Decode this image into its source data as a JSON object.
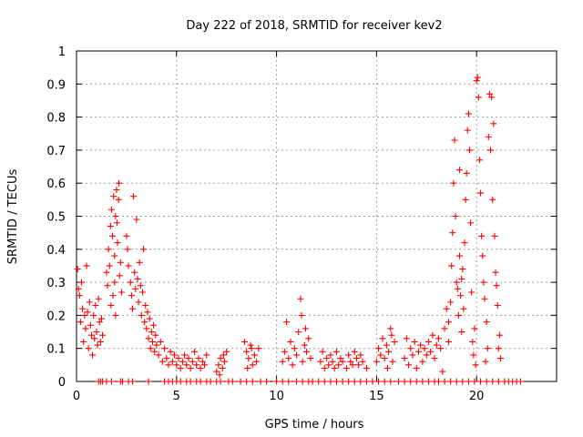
{
  "chart_data": {
    "type": "scatter",
    "title": "Day 222 of 2018, SRMTID for receiver kev2",
    "xlabel": "GPS time / hours",
    "ylabel": "SRMTID / TECUs",
    "xlim": [
      0,
      24
    ],
    "ylim": [
      0,
      1
    ],
    "xticks": [
      0,
      5,
      10,
      15,
      20
    ],
    "xtick_labels": [
      "0",
      "5",
      "10",
      "15",
      "20"
    ],
    "yticks": [
      0,
      0.1,
      0.2,
      0.3,
      0.4,
      0.5,
      0.6,
      0.7,
      0.8,
      0.9,
      1
    ],
    "ytick_labels": [
      "0",
      "0.1",
      "0.2",
      "0.3",
      "0.4",
      "0.5",
      "0.6",
      "0.7",
      "0.8",
      "0.9",
      "1"
    ],
    "grid": true,
    "marker": "+",
    "color": "#ff0000",
    "series": [
      {
        "name": "SRMTID",
        "points": [
          [
            0.05,
            0.34
          ],
          [
            0.1,
            0.28
          ],
          [
            0.15,
            0.26
          ],
          [
            0.2,
            0.18
          ],
          [
            0.25,
            0.3
          ],
          [
            0.3,
            0.22
          ],
          [
            0.35,
            0.12
          ],
          [
            0.4,
            0.2
          ],
          [
            0.45,
            0.16
          ],
          [
            0.5,
            0.35
          ],
          [
            0.55,
            0.21
          ],
          [
            0.6,
            0.1
          ],
          [
            0.65,
            0.24
          ],
          [
            0.7,
            0.17
          ],
          [
            0.75,
            0.14
          ],
          [
            0.8,
            0.08
          ],
          [
            0.85,
            0.2
          ],
          [
            0.9,
            0.13
          ],
          [
            0.95,
            0.23
          ],
          [
            1.0,
            0.15
          ],
          [
            1.05,
            0.11
          ],
          [
            1.1,
            0.25
          ],
          [
            1.15,
            0.18
          ],
          [
            1.2,
            0.12
          ],
          [
            1.25,
            0.19
          ],
          [
            1.3,
            0.14
          ],
          [
            1.5,
            0.33
          ],
          [
            1.55,
            0.29
          ],
          [
            1.6,
            0.4
          ],
          [
            1.65,
            0.35
          ],
          [
            1.7,
            0.47
          ],
          [
            1.75,
            0.52
          ],
          [
            1.8,
            0.44
          ],
          [
            1.85,
            0.56
          ],
          [
            1.9,
            0.38
          ],
          [
            1.95,
            0.5
          ],
          [
            2.0,
            0.58
          ],
          [
            2.05,
            0.42
          ],
          [
            2.1,
            0.55
          ],
          [
            2.15,
            0.32
          ],
          [
            2.2,
            0.36
          ],
          [
            2.25,
            0.27
          ],
          [
            1.72,
            0.23
          ],
          [
            1.9,
            0.3
          ],
          [
            2.02,
            0.48
          ],
          [
            2.12,
            0.6
          ],
          [
            1.82,
            0.26
          ],
          [
            1.95,
            0.2
          ],
          [
            2.5,
            0.44
          ],
          [
            2.55,
            0.4
          ],
          [
            2.6,
            0.35
          ],
          [
            2.7,
            0.3
          ],
          [
            2.75,
            0.26
          ],
          [
            2.8,
            0.22
          ],
          [
            2.85,
            0.56
          ],
          [
            2.9,
            0.33
          ],
          [
            2.95,
            0.28
          ],
          [
            3.0,
            0.49
          ],
          [
            3.05,
            0.31
          ],
          [
            3.1,
            0.24
          ],
          [
            3.15,
            0.36
          ],
          [
            3.2,
            0.29
          ],
          [
            3.25,
            0.2
          ],
          [
            3.3,
            0.27
          ],
          [
            3.35,
            0.4
          ],
          [
            3.4,
            0.18
          ],
          [
            3.45,
            0.23
          ],
          [
            3.5,
            0.16
          ],
          [
            3.55,
            0.21
          ],
          [
            3.6,
            0.13
          ],
          [
            3.65,
            0.19
          ],
          [
            3.7,
            0.1
          ],
          [
            3.75,
            0.15
          ],
          [
            3.8,
            0.12
          ],
          [
            3.85,
            0.17
          ],
          [
            3.9,
            0.09
          ],
          [
            3.95,
            0.14
          ],
          [
            4.0,
            0.11
          ],
          [
            4.1,
            0.08
          ],
          [
            4.2,
            0.12
          ],
          [
            4.3,
            0.06
          ],
          [
            4.4,
            0.1
          ],
          [
            4.5,
            0.07
          ],
          [
            4.6,
            0.05
          ],
          [
            4.7,
            0.09
          ],
          [
            4.8,
            0.06
          ],
          [
            4.9,
            0.08
          ],
          [
            5.0,
            0.05
          ],
          [
            5.1,
            0.07
          ],
          [
            5.2,
            0.04
          ],
          [
            5.3,
            0.06
          ],
          [
            5.4,
            0.08
          ],
          [
            5.5,
            0.05
          ],
          [
            5.6,
            0.07
          ],
          [
            5.7,
            0.04
          ],
          [
            5.8,
            0.06
          ],
          [
            5.9,
            0.09
          ],
          [
            6.0,
            0.05
          ],
          [
            6.1,
            0.07
          ],
          [
            6.2,
            0.04
          ],
          [
            6.3,
            0.06
          ],
          [
            6.4,
            0.05
          ],
          [
            6.5,
            0.08
          ],
          [
            7.0,
            0.03
          ],
          [
            7.1,
            0.05
          ],
          [
            7.2,
            0.07
          ],
          [
            7.3,
            0.04
          ],
          [
            7.4,
            0.06
          ],
          [
            7.5,
            0.09
          ],
          [
            7.15,
            0.02
          ],
          [
            7.35,
            0.08
          ],
          [
            8.4,
            0.12
          ],
          [
            8.5,
            0.09
          ],
          [
            8.6,
            0.07
          ],
          [
            8.7,
            0.11
          ],
          [
            8.8,
            0.05
          ],
          [
            8.9,
            0.08
          ],
          [
            9.0,
            0.06
          ],
          [
            9.1,
            0.1
          ],
          [
            8.55,
            0.04
          ],
          [
            8.75,
            0.1
          ],
          [
            10.3,
            0.06
          ],
          [
            10.4,
            0.09
          ],
          [
            10.5,
            0.18
          ],
          [
            10.6,
            0.07
          ],
          [
            10.7,
            0.12
          ],
          [
            10.8,
            0.05
          ],
          [
            10.9,
            0.1
          ],
          [
            11.0,
            0.08
          ],
          [
            11.1,
            0.15
          ],
          [
            11.2,
            0.25
          ],
          [
            11.3,
            0.06
          ],
          [
            11.4,
            0.11
          ],
          [
            11.5,
            0.09
          ],
          [
            11.6,
            0.13
          ],
          [
            11.7,
            0.07
          ],
          [
            11.25,
            0.2
          ],
          [
            11.45,
            0.16
          ],
          [
            12.2,
            0.06
          ],
          [
            12.3,
            0.09
          ],
          [
            12.4,
            0.04
          ],
          [
            12.5,
            0.07
          ],
          [
            12.6,
            0.05
          ],
          [
            12.7,
            0.08
          ],
          [
            12.8,
            0.06
          ],
          [
            12.9,
            0.04
          ],
          [
            13.0,
            0.09
          ],
          [
            13.1,
            0.05
          ],
          [
            13.2,
            0.07
          ],
          [
            13.3,
            0.06
          ],
          [
            13.5,
            0.04
          ],
          [
            13.6,
            0.08
          ],
          [
            13.7,
            0.06
          ],
          [
            13.8,
            0.05
          ],
          [
            13.9,
            0.09
          ],
          [
            14.0,
            0.07
          ],
          [
            14.1,
            0.05
          ],
          [
            14.2,
            0.08
          ],
          [
            14.3,
            0.06
          ],
          [
            14.5,
            0.04
          ],
          [
            15.0,
            0.06
          ],
          [
            15.1,
            0.1
          ],
          [
            15.2,
            0.08
          ],
          [
            15.3,
            0.13
          ],
          [
            15.4,
            0.07
          ],
          [
            15.5,
            0.11
          ],
          [
            15.6,
            0.09
          ],
          [
            15.7,
            0.16
          ],
          [
            15.8,
            0.06
          ],
          [
            15.9,
            0.12
          ],
          [
            15.55,
            0.04
          ],
          [
            15.75,
            0.14
          ],
          [
            16.4,
            0.07
          ],
          [
            16.5,
            0.13
          ],
          [
            16.6,
            0.05
          ],
          [
            16.7,
            0.1
          ],
          [
            16.8,
            0.08
          ],
          [
            16.9,
            0.12
          ],
          [
            17.0,
            0.04
          ],
          [
            17.1,
            0.09
          ],
          [
            17.2,
            0.11
          ],
          [
            17.3,
            0.06
          ],
          [
            17.4,
            0.1
          ],
          [
            17.5,
            0.08
          ],
          [
            17.6,
            0.12
          ],
          [
            17.7,
            0.09
          ],
          [
            17.8,
            0.14
          ],
          [
            17.9,
            0.07
          ],
          [
            18.0,
            0.11
          ],
          [
            18.1,
            0.13
          ],
          [
            18.2,
            0.1
          ],
          [
            18.3,
            0.03
          ],
          [
            18.4,
            0.16
          ],
          [
            18.5,
            0.22
          ],
          [
            18.6,
            0.12
          ],
          [
            18.6,
            0.18
          ],
          [
            18.7,
            0.24
          ],
          [
            18.75,
            0.35
          ],
          [
            18.8,
            0.45
          ],
          [
            18.85,
            0.6
          ],
          [
            18.9,
            0.73
          ],
          [
            18.95,
            0.5
          ],
          [
            19.0,
            0.3
          ],
          [
            19.05,
            0.28
          ],
          [
            19.1,
            0.2
          ],
          [
            19.15,
            0.38
          ],
          [
            19.2,
            0.26
          ],
          [
            19.25,
            0.15
          ],
          [
            19.3,
            0.34
          ],
          [
            19.35,
            0.22
          ],
          [
            19.4,
            0.42
          ],
          [
            19.45,
            0.55
          ],
          [
            19.5,
            0.63
          ],
          [
            19.55,
            0.76
          ],
          [
            19.6,
            0.81
          ],
          [
            19.65,
            0.7
          ],
          [
            19.7,
            0.48
          ],
          [
            19.75,
            0.27
          ],
          [
            19.8,
            0.12
          ],
          [
            19.85,
            0.08
          ],
          [
            19.9,
            0.16
          ],
          [
            19.95,
            0.05
          ],
          [
            20.0,
            0.91
          ],
          [
            20.05,
            0.92
          ],
          [
            20.1,
            0.86
          ],
          [
            20.15,
            0.67
          ],
          [
            20.2,
            0.57
          ],
          [
            20.25,
            0.44
          ],
          [
            20.3,
            0.38
          ],
          [
            20.35,
            0.3
          ],
          [
            20.4,
            0.25
          ],
          [
            20.5,
            0.18
          ],
          [
            20.6,
            0.74
          ],
          [
            20.65,
            0.87
          ],
          [
            20.7,
            0.7
          ],
          [
            20.75,
            0.86
          ],
          [
            20.8,
            0.55
          ],
          [
            20.85,
            0.78
          ],
          [
            20.9,
            0.44
          ],
          [
            20.95,
            0.33
          ],
          [
            21.0,
            0.29
          ],
          [
            21.05,
            0.23
          ],
          [
            21.1,
            0.1
          ],
          [
            21.15,
            0.14
          ],
          [
            21.2,
            0.07
          ],
          [
            20.55,
            0.1
          ],
          [
            20.45,
            0.06
          ],
          [
            19.15,
            0.64
          ],
          [
            19.25,
            0.31
          ]
        ]
      }
    ],
    "zero_value_hours": [
      1.1,
      1.2,
      1.3,
      1.5,
      1.75,
      2.2,
      2.3,
      2.6,
      2.8,
      3.6,
      4.4,
      4.6,
      4.8,
      5.0,
      5.2,
      5.5,
      5.7,
      6.0,
      6.2,
      6.5,
      6.7,
      7.0,
      7.2,
      7.6,
      7.8,
      8.2,
      8.5,
      8.8,
      9.2,
      9.5,
      10.0,
      10.3,
      10.6,
      11.0,
      11.3,
      11.6,
      11.8,
      12.1,
      12.4,
      12.7,
      13.0,
      13.3,
      13.6,
      13.9,
      14.2,
      14.5,
      14.8,
      15.1,
      15.4,
      15.7,
      16.1,
      16.4,
      16.7,
      17.0,
      17.3,
      17.6,
      17.9,
      18.1,
      18.4,
      18.7,
      19.0,
      19.3,
      19.6,
      19.9,
      20.2,
      20.5,
      20.8,
      21.1,
      21.4,
      21.6,
      21.8,
      22.0,
      22.2
    ]
  }
}
